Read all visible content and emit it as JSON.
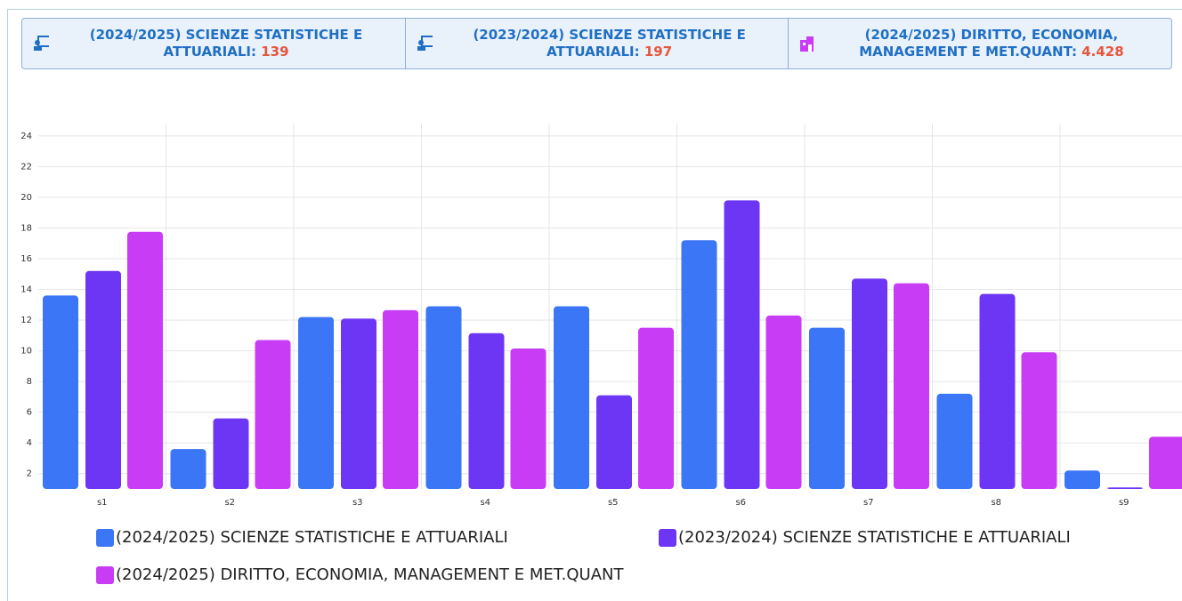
{
  "cards": [
    {
      "title": "(2024/2025) SCIENZE STATISTICHE E ATTUARIALI:",
      "value": "139"
    },
    {
      "title": "(2023/2024) SCIENZE STATISTICHE E ATTUARIALI:",
      "value": "197"
    },
    {
      "title": "(2024/2025) DIRITTO, ECONOMIA, MANAGEMENT E MET.QUANT:",
      "value": "4.428"
    }
  ],
  "chart_data": {
    "type": "bar",
    "categories": [
      "s1",
      "s2",
      "s3",
      "s4",
      "s5",
      "s6",
      "s7",
      "s8",
      "s9"
    ],
    "series": [
      {
        "name": "(2024/2025) SCIENZE STATISTICHE E ATTUARIALI",
        "color": "#3b76f6",
        "values": [
          13.6,
          3.6,
          12.2,
          12.9,
          12.9,
          17.2,
          11.5,
          7.2,
          2.2
        ]
      },
      {
        "name": "(2023/2024) SCIENZE STATISTICHE E ATTUARIALI",
        "color": "#6d36f5",
        "values": [
          15.2,
          5.6,
          12.1,
          11.15,
          7.1,
          19.8,
          14.7,
          13.7,
          1.1
        ]
      },
      {
        "name": "(2024/2025) DIRITTO, ECONOMIA, MANAGEMENT E MET.QUANT",
        "color": "#c83cf6",
        "values": [
          17.75,
          10.7,
          12.65,
          10.15,
          11.5,
          12.3,
          14.4,
          9.9,
          4.4
        ]
      }
    ],
    "ylim": [
      1,
      24.8
    ],
    "yticks": [
      2,
      4,
      6,
      8,
      10,
      12,
      14,
      16,
      18,
      20,
      22,
      24
    ],
    "grid": true
  }
}
